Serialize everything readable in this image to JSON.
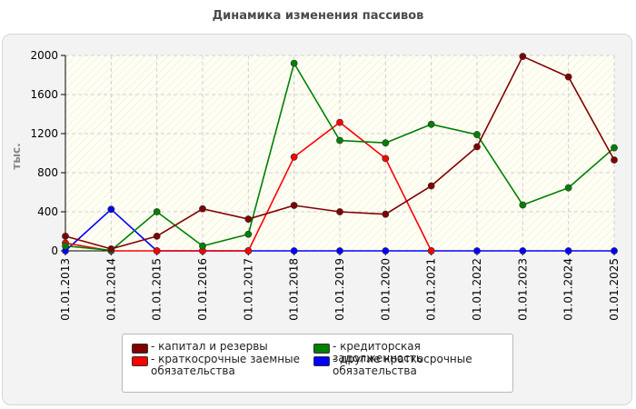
{
  "chart_data": {
    "type": "line",
    "title": "Динамика изменения пассивов",
    "ylabel": "тыс.",
    "xlabel": "",
    "x": [
      "01.01.2013",
      "01.01.2014",
      "01.01.2015",
      "01.01.2016",
      "01.01.2017",
      "01.01.2018",
      "01.01.2019",
      "01.01.2020",
      "01.01.2021",
      "01.01.2022",
      "01.01.2023",
      "01.01.2024",
      "01.01.2025"
    ],
    "ylim": [
      0,
      2000
    ],
    "yticks": [
      "0",
      "400",
      "800",
      "1200",
      "1600",
      "2000"
    ],
    "ytick_values": [
      0,
      400,
      800,
      1200,
      1600,
      2000
    ],
    "grid": true,
    "legend_position": "bottom",
    "series": [
      {
        "name": "капитал и резервы",
        "color": "#800000",
        "values": [
          150,
          20,
          150,
          430,
          325,
          465,
          400,
          375,
          665,
          1065,
          1990,
          1780,
          930
        ]
      },
      {
        "name": "кредиторская задолженность",
        "color": "#008000",
        "values": [
          50,
          5,
          400,
          50,
          170,
          1920,
          1130,
          1105,
          1295,
          1190,
          470,
          645,
          1055
        ]
      },
      {
        "name": "краткосрочные заемные обязательства",
        "color": "#ff0000",
        "values": [
          80,
          0,
          0,
          0,
          0,
          960,
          1315,
          945,
          0,
          null,
          null,
          null,
          null
        ]
      },
      {
        "name": "другие краткосрочные обязательства",
        "color": "#0000ff",
        "values": [
          0,
          425,
          0,
          0,
          0,
          0,
          0,
          0,
          0,
          0,
          0,
          0,
          0
        ]
      }
    ]
  }
}
